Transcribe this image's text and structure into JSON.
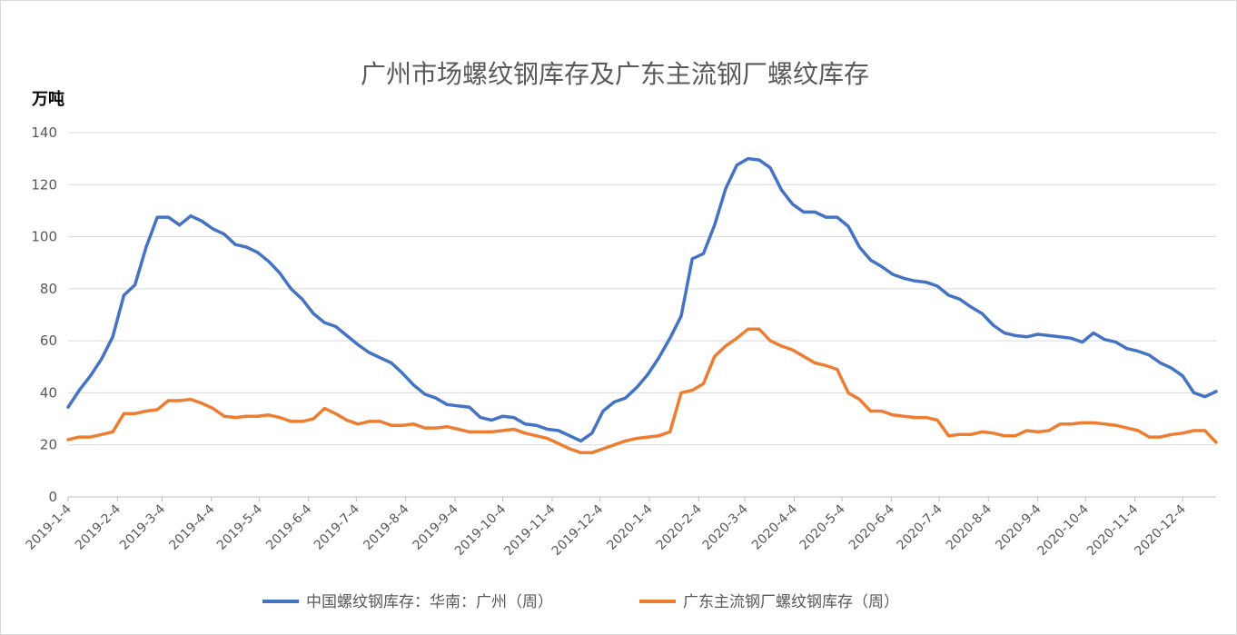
{
  "chart_data": {
    "type": "line",
    "title": "广州市场螺纹钢库存及广东主流钢厂螺纹库存",
    "ylabel": "万吨",
    "ylim": [
      0,
      140
    ],
    "yticks": [
      0,
      20,
      40,
      60,
      80,
      100,
      120,
      140
    ],
    "x_start": "2019-1-4",
    "x_end": "2020-12-25",
    "xtick_labels": [
      "2019-1-4",
      "2019-2-4",
      "2019-3-4",
      "2019-4-4",
      "2019-5-4",
      "2019-6-4",
      "2019-7-4",
      "2019-8-4",
      "2019-9-4",
      "2019-10-4",
      "2019-11-4",
      "2019-12-4",
      "2020-1-4",
      "2020-2-4",
      "2020-3-4",
      "2020-4-4",
      "2020-5-4",
      "2020-6-4",
      "2020-7-4",
      "2020-8-4",
      "2020-9-4",
      "2020-10-4",
      "2020-11-4",
      "2020-12-4"
    ],
    "grid": true,
    "legend_position": "bottom",
    "series": [
      {
        "name": "中国螺纹钢库存：华南：广州（周）",
        "color": "#4472c4",
        "points": [
          [
            "2019-1-4",
            34.5
          ],
          [
            "2019-1-11",
            41
          ],
          [
            "2019-1-18",
            46.5
          ],
          [
            "2019-1-25",
            53
          ],
          [
            "2019-2-1",
            61.5
          ],
          [
            "2019-2-8",
            77.5
          ],
          [
            "2019-2-15",
            81.5
          ],
          [
            "2019-2-22",
            96
          ],
          [
            "2019-3-1",
            107.5
          ],
          [
            "2019-3-8",
            107.5
          ],
          [
            "2019-3-15",
            104.5
          ],
          [
            "2019-3-22",
            108
          ],
          [
            "2019-3-29",
            106
          ],
          [
            "2019-4-5",
            103
          ],
          [
            "2019-4-12",
            101
          ],
          [
            "2019-4-19",
            97
          ],
          [
            "2019-4-26",
            96
          ],
          [
            "2019-5-3",
            94
          ],
          [
            "2019-5-10",
            90.5
          ],
          [
            "2019-5-17",
            86
          ],
          [
            "2019-5-24",
            80
          ],
          [
            "2019-5-31",
            76
          ],
          [
            "2019-6-7",
            70.5
          ],
          [
            "2019-6-14",
            67
          ],
          [
            "2019-6-21",
            65.5
          ],
          [
            "2019-6-28",
            62
          ],
          [
            "2019-7-5",
            58.5
          ],
          [
            "2019-7-12",
            55.5
          ],
          [
            "2019-7-19",
            53.5
          ],
          [
            "2019-7-26",
            51.5
          ],
          [
            "2019-8-2",
            47.5
          ],
          [
            "2019-8-9",
            43
          ],
          [
            "2019-8-16",
            39.5
          ],
          [
            "2019-8-23",
            38
          ],
          [
            "2019-8-30",
            35.5
          ],
          [
            "2019-9-6",
            35
          ],
          [
            "2019-9-13",
            34.5
          ],
          [
            "2019-9-20",
            30.5
          ],
          [
            "2019-9-27",
            29.5
          ],
          [
            "2019-10-4",
            31
          ],
          [
            "2019-10-11",
            30.5
          ],
          [
            "2019-10-18",
            28
          ],
          [
            "2019-10-25",
            27.5
          ],
          [
            "2019-11-1",
            26
          ],
          [
            "2019-11-8",
            25.5
          ],
          [
            "2019-11-15",
            23.5
          ],
          [
            "2019-11-22",
            21.5
          ],
          [
            "2019-11-29",
            24.5
          ],
          [
            "2019-12-6",
            33
          ],
          [
            "2019-12-13",
            36.5
          ],
          [
            "2019-12-20",
            38
          ],
          [
            "2019-12-27",
            42
          ],
          [
            "2020-1-3",
            47
          ],
          [
            "2020-1-10",
            53.5
          ],
          [
            "2020-1-17",
            61
          ],
          [
            "2020-1-24",
            69.5
          ],
          [
            "2020-1-31",
            91.5
          ],
          [
            "2020-2-7",
            93.5
          ],
          [
            "2020-2-14",
            104.5
          ],
          [
            "2020-2-21",
            118.5
          ],
          [
            "2020-2-28",
            127.5
          ],
          [
            "2020-3-6",
            130
          ],
          [
            "2020-3-13",
            129.5
          ],
          [
            "2020-3-20",
            126.5
          ],
          [
            "2020-3-27",
            118
          ],
          [
            "2020-4-3",
            112.5
          ],
          [
            "2020-4-10",
            109.5
          ],
          [
            "2020-4-17",
            109.5
          ],
          [
            "2020-4-24",
            107.5
          ],
          [
            "2020-5-1",
            107.5
          ],
          [
            "2020-5-8",
            104
          ],
          [
            "2020-5-15",
            96
          ],
          [
            "2020-5-22",
            91
          ],
          [
            "2020-5-29",
            88.5
          ],
          [
            "2020-6-5",
            85.5
          ],
          [
            "2020-6-12",
            84
          ],
          [
            "2020-6-19",
            83
          ],
          [
            "2020-6-26",
            82.5
          ],
          [
            "2020-7-3",
            81
          ],
          [
            "2020-7-10",
            77.5
          ],
          [
            "2020-7-17",
            76
          ],
          [
            "2020-7-24",
            73
          ],
          [
            "2020-7-31",
            70.5
          ],
          [
            "2020-8-7",
            66
          ],
          [
            "2020-8-14",
            63
          ],
          [
            "2020-8-21",
            62
          ],
          [
            "2020-8-28",
            61.5
          ],
          [
            "2020-9-4",
            62.5
          ],
          [
            "2020-9-11",
            62
          ],
          [
            "2020-9-18",
            61.5
          ],
          [
            "2020-9-25",
            61
          ],
          [
            "2020-10-2",
            59.5
          ],
          [
            "2020-10-9",
            63
          ],
          [
            "2020-10-16",
            60.5
          ],
          [
            "2020-10-23",
            59.5
          ],
          [
            "2020-10-30",
            57
          ],
          [
            "2020-11-6",
            56
          ],
          [
            "2020-11-13",
            54.5
          ],
          [
            "2020-11-20",
            51.5
          ],
          [
            "2020-11-27",
            49.5
          ],
          [
            "2020-12-4",
            46.5
          ],
          [
            "2020-12-11",
            40
          ],
          [
            "2020-12-18",
            38.5
          ],
          [
            "2020-12-25",
            40.5
          ]
        ]
      },
      {
        "name": "广东主流钢厂螺纹钢库存（周）",
        "color": "#ed7d31",
        "points": [
          [
            "2019-1-4",
            22
          ],
          [
            "2019-1-11",
            23
          ],
          [
            "2019-1-18",
            23
          ],
          [
            "2019-1-25",
            24
          ],
          [
            "2019-2-1",
            25
          ],
          [
            "2019-2-8",
            32
          ],
          [
            "2019-2-15",
            32
          ],
          [
            "2019-2-22",
            33
          ],
          [
            "2019-3-1",
            33.5
          ],
          [
            "2019-3-8",
            37
          ],
          [
            "2019-3-15",
            37
          ],
          [
            "2019-3-22",
            37.5
          ],
          [
            "2019-3-29",
            36
          ],
          [
            "2019-4-5",
            34
          ],
          [
            "2019-4-12",
            31
          ],
          [
            "2019-4-19",
            30.5
          ],
          [
            "2019-4-26",
            31
          ],
          [
            "2019-5-3",
            31
          ],
          [
            "2019-5-10",
            31.5
          ],
          [
            "2019-5-17",
            30.5
          ],
          [
            "2019-5-24",
            29
          ],
          [
            "2019-5-31",
            29
          ],
          [
            "2019-6-7",
            30
          ],
          [
            "2019-6-14",
            34
          ],
          [
            "2019-6-21",
            32
          ],
          [
            "2019-6-28",
            29.5
          ],
          [
            "2019-7-5",
            28
          ],
          [
            "2019-7-12",
            29
          ],
          [
            "2019-7-19",
            29
          ],
          [
            "2019-7-26",
            27.5
          ],
          [
            "2019-8-2",
            27.5
          ],
          [
            "2019-8-9",
            28
          ],
          [
            "2019-8-16",
            26.5
          ],
          [
            "2019-8-23",
            26.5
          ],
          [
            "2019-8-30",
            27
          ],
          [
            "2019-9-6",
            26
          ],
          [
            "2019-9-13",
            25
          ],
          [
            "2019-9-20",
            25
          ],
          [
            "2019-9-27",
            25
          ],
          [
            "2019-10-4",
            25.5
          ],
          [
            "2019-10-11",
            26
          ],
          [
            "2019-10-18",
            24.5
          ],
          [
            "2019-10-25",
            23.5
          ],
          [
            "2019-11-1",
            22.5
          ],
          [
            "2019-11-8",
            20.5
          ],
          [
            "2019-11-15",
            18.5
          ],
          [
            "2019-11-22",
            17
          ],
          [
            "2019-11-29",
            17
          ],
          [
            "2019-12-6",
            18.5
          ],
          [
            "2019-12-13",
            20
          ],
          [
            "2019-12-20",
            21.5
          ],
          [
            "2019-12-27",
            22.5
          ],
          [
            "2020-1-3",
            23
          ],
          [
            "2020-1-10",
            23.5
          ],
          [
            "2020-1-17",
            25
          ],
          [
            "2020-1-24",
            40
          ],
          [
            "2020-1-31",
            41
          ],
          [
            "2020-2-7",
            43.5
          ],
          [
            "2020-2-14",
            54
          ],
          [
            "2020-2-21",
            58
          ],
          [
            "2020-2-28",
            61
          ],
          [
            "2020-3-6",
            64.5
          ],
          [
            "2020-3-13",
            64.5
          ],
          [
            "2020-3-20",
            60
          ],
          [
            "2020-3-27",
            58
          ],
          [
            "2020-4-3",
            56.5
          ],
          [
            "2020-4-10",
            54
          ],
          [
            "2020-4-17",
            51.5
          ],
          [
            "2020-4-24",
            50.5
          ],
          [
            "2020-5-1",
            49
          ],
          [
            "2020-5-8",
            40
          ],
          [
            "2020-5-15",
            37.5
          ],
          [
            "2020-5-22",
            33
          ],
          [
            "2020-5-29",
            33
          ],
          [
            "2020-6-5",
            31.5
          ],
          [
            "2020-6-12",
            31
          ],
          [
            "2020-6-19",
            30.5
          ],
          [
            "2020-6-26",
            30.5
          ],
          [
            "2020-7-3",
            29.5
          ],
          [
            "2020-7-10",
            23.5
          ],
          [
            "2020-7-17",
            24
          ],
          [
            "2020-7-24",
            24
          ],
          [
            "2020-7-31",
            25
          ],
          [
            "2020-8-7",
            24.5
          ],
          [
            "2020-8-14",
            23.5
          ],
          [
            "2020-8-21",
            23.5
          ],
          [
            "2020-8-28",
            25.5
          ],
          [
            "2020-9-4",
            25
          ],
          [
            "2020-9-11",
            25.5
          ],
          [
            "2020-9-18",
            28
          ],
          [
            "2020-9-25",
            28
          ],
          [
            "2020-10-2",
            28.5
          ],
          [
            "2020-10-9",
            28.5
          ],
          [
            "2020-10-16",
            28
          ],
          [
            "2020-10-23",
            27.5
          ],
          [
            "2020-10-30",
            26.5
          ],
          [
            "2020-11-6",
            25.5
          ],
          [
            "2020-11-13",
            23
          ],
          [
            "2020-11-20",
            23
          ],
          [
            "2020-11-27",
            24
          ],
          [
            "2020-12-4",
            24.5
          ],
          [
            "2020-12-11",
            25.5
          ],
          [
            "2020-12-18",
            25.5
          ],
          [
            "2020-12-25",
            21
          ]
        ]
      }
    ]
  }
}
